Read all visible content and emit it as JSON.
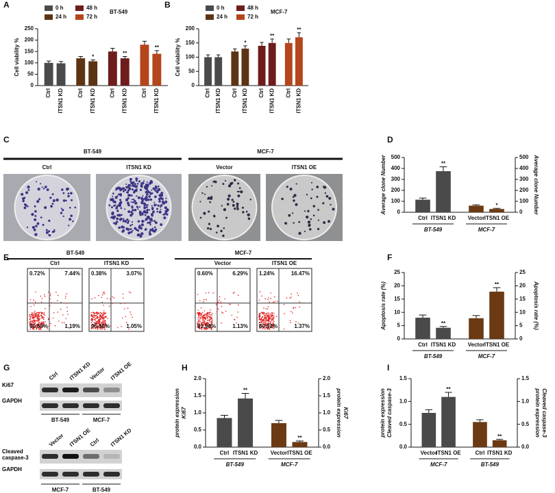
{
  "chart_data": [
    {
      "type": "bar",
      "panel": "A",
      "title": "BT-549",
      "y_label": "Cell viability %",
      "legend": true,
      "ylim": [
        0,
        250
      ],
      "yticks": [
        0,
        50,
        100,
        150,
        200,
        250
      ],
      "groups": [
        {
          "name": "0 h",
          "color": "#4a4a4a",
          "categories": [
            "Ctrl",
            "ITSN1 KD"
          ],
          "values": [
            100,
            98
          ],
          "errors": [
            8,
            8
          ],
          "significance": [
            null,
            null
          ]
        },
        {
          "name": "24 h",
          "color": "#5c3414",
          "categories": [
            "Ctrl",
            "ITSN1 KD"
          ],
          "values": [
            120,
            107
          ],
          "errors": [
            8,
            6
          ],
          "significance": [
            null,
            "*"
          ]
        },
        {
          "name": "48 h",
          "color": "#6e1c1c",
          "categories": [
            "Ctrl",
            "ITSN1 KD"
          ],
          "values": [
            150,
            120
          ],
          "errors": [
            14,
            8
          ],
          "significance": [
            null,
            "**"
          ]
        },
        {
          "name": "72 h",
          "color": "#b5451b",
          "categories": [
            "Ctrl",
            "ITSN1 KD"
          ],
          "values": [
            180,
            140
          ],
          "errors": [
            15,
            14
          ],
          "significance": [
            null,
            "**"
          ]
        }
      ]
    },
    {
      "type": "bar",
      "panel": "B",
      "title": "MCF-7",
      "y_label": "Cell viability %",
      "legend": true,
      "ylim": [
        0,
        200
      ],
      "yticks": [
        0,
        50,
        100,
        150,
        200
      ],
      "groups": [
        {
          "name": "0 h",
          "color": "#4a4a4a",
          "categories": [
            "Ctrl",
            "ITSN1 KD"
          ],
          "values": [
            100,
            100
          ],
          "errors": [
            8,
            8
          ],
          "significance": [
            null,
            null
          ]
        },
        {
          "name": "24 h",
          "color": "#5c3414",
          "categories": [
            "Ctrl",
            "ITSN1 KD"
          ],
          "values": [
            120,
            130
          ],
          "errors": [
            9,
            10
          ],
          "significance": [
            null,
            "*"
          ]
        },
        {
          "name": "48 h",
          "color": "#6e1c1c",
          "categories": [
            "Ctrl",
            "ITSN1 KD"
          ],
          "values": [
            140,
            150
          ],
          "errors": [
            12,
            14
          ],
          "significance": [
            null,
            "**"
          ]
        },
        {
          "name": "72 h",
          "color": "#b5451b",
          "categories": [
            "Ctrl",
            "ITSN1 KD"
          ],
          "values": [
            150,
            170
          ],
          "errors": [
            14,
            16
          ],
          "significance": [
            null,
            "**"
          ]
        }
      ]
    },
    {
      "type": "bar",
      "panel": "D",
      "y_label": [
        "Average clone Number"
      ],
      "y2_label": [
        "Average clone Number"
      ],
      "ylim": [
        0,
        500
      ],
      "yticks": [
        0,
        100,
        200,
        300,
        400,
        500
      ],
      "y2lim": [
        0,
        500
      ],
      "y2ticks": [
        0,
        100,
        200,
        300,
        400,
        500
      ],
      "groups": [
        {
          "label": "BT-549",
          "color": "#4a4a4a",
          "categories": [
            "Ctrl",
            "ITSN1 KD"
          ],
          "values": [
            115,
            375
          ],
          "errors": [
            15,
            40
          ],
          "significance": [
            null,
            "**"
          ]
        },
        {
          "label": "MCF-7",
          "color": "#6b3a12",
          "categories": [
            "Vector",
            "ITSN1 OE"
          ],
          "values": [
            60,
            30
          ],
          "errors": [
            8,
            6
          ],
          "significance": [
            null,
            "*"
          ]
        }
      ]
    },
    {
      "type": "bar",
      "panel": "F",
      "y_label": [
        "Apoptosis rate (%)"
      ],
      "y2_label": [
        "Apoptosis rate (%)"
      ],
      "ylim": [
        0,
        25
      ],
      "yticks": [
        0,
        5,
        10,
        15,
        20,
        25
      ],
      "y2lim": [
        0,
        25
      ],
      "y2ticks": [
        0,
        5,
        10,
        15,
        20,
        25
      ],
      "groups": [
        {
          "label": "BT-549",
          "color": "#4a4a4a",
          "categories": [
            "Ctrl",
            "ITSN1 KD"
          ],
          "values": [
            8,
            4.2
          ],
          "errors": [
            1,
            0.5
          ],
          "significance": [
            null,
            "**"
          ]
        },
        {
          "label": "MCF-7",
          "color": "#6b3a12",
          "categories": [
            "Vector",
            "ITSN1 OE"
          ],
          "values": [
            7.8,
            17.8
          ],
          "errors": [
            1,
            1.5
          ],
          "significance": [
            null,
            "**"
          ]
        }
      ]
    },
    {
      "type": "bar",
      "panel": "H",
      "y_label": [
        "Ki67",
        "protein expression"
      ],
      "y2_label": [
        "Ki67",
        "protein expression"
      ],
      "ylim": [
        0,
        2
      ],
      "yticks": [
        {
          "value": 0,
          "label": "0.0"
        },
        0.5,
        {
          "value": 1,
          "label": "1.0"
        },
        1.5,
        {
          "value": 2,
          "label": "2.0"
        }
      ],
      "y2lim": [
        0,
        2
      ],
      "y2ticks": [
        {
          "value": 0,
          "label": "0.0"
        },
        0.5,
        {
          "value": 1,
          "label": "1.0"
        },
        1.5,
        {
          "value": 2,
          "label": "2.0"
        }
      ],
      "groups": [
        {
          "label": "BT-549",
          "color": "#4a4a4a",
          "categories": [
            "Ctrl",
            "ITSN1 KD"
          ],
          "values": [
            0.85,
            1.42
          ],
          "errors": [
            0.08,
            0.15
          ],
          "significance": [
            null,
            "**"
          ]
        },
        {
          "label": "MCF-7",
          "color": "#6b3a12",
          "categories": [
            "Vector",
            "ITSN1 OE"
          ],
          "values": [
            0.7,
            0.15
          ],
          "errors": [
            0.08,
            0.03
          ],
          "significance": [
            null,
            "**"
          ]
        }
      ]
    },
    {
      "type": "bar",
      "panel": "I",
      "y_label": [
        "Cleaved caspase-3",
        "protein expression"
      ],
      "y2_label": [
        "Cleaved caspase-3",
        "protein expression"
      ],
      "ylim": [
        0,
        1.5
      ],
      "yticks": [
        {
          "value": 0,
          "label": "0.0"
        },
        0.5,
        {
          "value": 1,
          "label": "1.0"
        },
        1.5
      ],
      "y2lim": [
        0,
        1.5
      ],
      "y2ticks": [
        {
          "value": 0,
          "label": "0.0"
        },
        0.5,
        {
          "value": 1,
          "label": "1.0"
        },
        1.5
      ],
      "groups": [
        {
          "label": "MCF-7",
          "color": "#4a4a4a",
          "categories": [
            "Vector",
            "ITSN1 OE"
          ],
          "values": [
            0.75,
            1.1
          ],
          "errors": [
            0.07,
            0.1
          ],
          "significance": [
            null,
            "**"
          ]
        },
        {
          "label": "BT-549",
          "color": "#6b3a12",
          "categories": [
            "Ctrl",
            "ITSN1 KD"
          ],
          "values": [
            0.55,
            0.15
          ],
          "errors": [
            0.05,
            0.02
          ],
          "significance": [
            null,
            "**"
          ]
        }
      ]
    }
  ],
  "colony_assay": {
    "panel": "C",
    "cell_lines": [
      {
        "name": "BT-549",
        "conditions": [
          "Ctrl",
          "ITSN1 KD"
        ]
      },
      {
        "name": "MCF-7",
        "conditions": [
          "Vector",
          "ITSN1 OE"
        ]
      }
    ]
  },
  "flow_cytometry": {
    "panel": "E",
    "cell_lines": [
      {
        "name": "BT-549",
        "plots": [
          {
            "condition": "Ctrl",
            "quadrants": [
              "0.72%",
              "7.44%",
              "90.65%",
              "1.19%"
            ]
          },
          {
            "condition": "ITSN1 KD",
            "quadrants": [
              "0.38%",
              "3.07%",
              "95.50%",
              "1.05%"
            ]
          }
        ]
      },
      {
        "name": "MCF-7",
        "plots": [
          {
            "condition": "Vector",
            "quadrants": [
              "0.60%",
              "6.29%",
              "91.98%",
              "1.13%"
            ]
          },
          {
            "condition": "ITSN1 OE",
            "quadrants": [
              "1.24%",
              "16.47%",
              "80.92%",
              "1.37%"
            ]
          }
        ]
      }
    ]
  },
  "western_blot": {
    "panel": "G",
    "blots": [
      {
        "lanes": [
          "Ctrl",
          "ITSN1 KD",
          "Vector",
          "ITSN1 OE"
        ],
        "rows": [
          "Ki67",
          "GAPDH"
        ],
        "cell_lines": [
          "BT-549",
          "MCF-7"
        ]
      },
      {
        "lanes": [
          "Vector",
          "ITSN1 OE",
          "Ctrl",
          "ITSN1 KD"
        ],
        "rows": [
          "Cleaved caspase-3",
          "GAPDH"
        ],
        "cell_lines": [
          "MCF-7",
          "BT-549"
        ]
      }
    ]
  }
}
